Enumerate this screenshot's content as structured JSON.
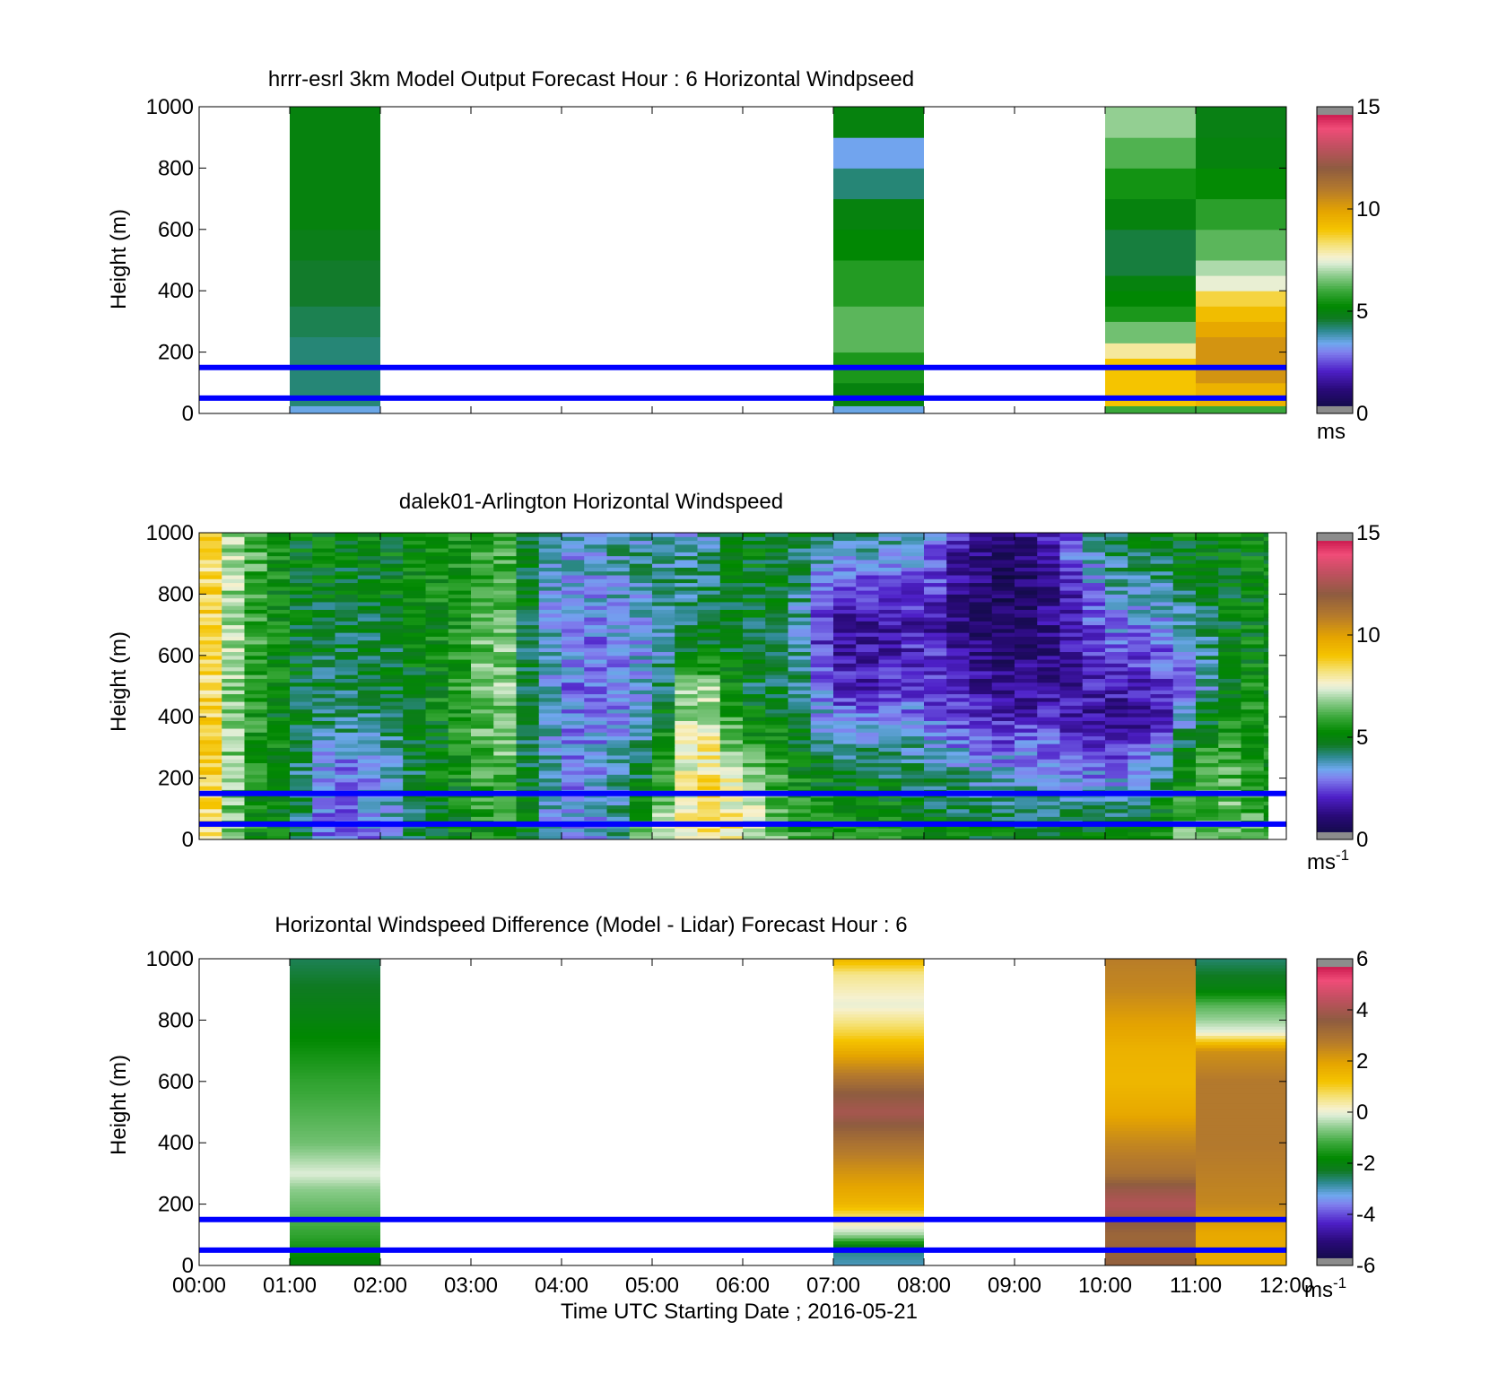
{
  "figure": {
    "xlabel": "Time UTC  Starting Date ; 2016-05-21",
    "time_ticks": [
      "00:00",
      "01:00",
      "02:00",
      "03:00",
      "04:00",
      "05:00",
      "06:00",
      "07:00",
      "08:00",
      "09:00",
      "10:00",
      "11:00",
      "12:00"
    ],
    "reference_lines_m": [
      50,
      150
    ],
    "reference_line_color": "#0000ff"
  },
  "chart_data": [
    {
      "type": "heatmap",
      "title": "hrrr-esrl 3km Model Output   Forecast Hour : 6 Horizontal Windpseed",
      "ylabel": "Height (m)",
      "ylim": [
        0,
        1000
      ],
      "yticks": [
        "0",
        "200",
        "400",
        "600",
        "800",
        "1000"
      ],
      "xlim_hours": [
        0,
        12
      ],
      "colorbar": {
        "ticks": [
          "0",
          "5",
          "10",
          "15"
        ],
        "range": [
          0,
          15
        ],
        "unit": "ms",
        "unit_sup": ""
      },
      "columns": [
        {
          "x_start_h": 1,
          "x_end_h": 2,
          "bins": [
            {
              "z0": 0,
              "z1": 25,
              "value": 3.5
            },
            {
              "z0": 25,
              "z1": 150,
              "value": 4.2
            },
            {
              "z0": 150,
              "z1": 250,
              "value": 4.2
            },
            {
              "z0": 250,
              "z1": 350,
              "value": 4.4
            },
            {
              "z0": 350,
              "z1": 500,
              "value": 4.6
            },
            {
              "z0": 500,
              "z1": 600,
              "value": 4.8
            },
            {
              "z0": 600,
              "z1": 1000,
              "value": 5.0
            }
          ]
        },
        {
          "x_start_h": 7,
          "x_end_h": 8,
          "bins": [
            {
              "z0": 0,
              "z1": 25,
              "value": 3.5
            },
            {
              "z0": 25,
              "z1": 100,
              "value": 5.0
            },
            {
              "z0": 100,
              "z1": 200,
              "value": 5.6
            },
            {
              "z0": 200,
              "z1": 350,
              "value": 6.3
            },
            {
              "z0": 350,
              "z1": 500,
              "value": 5.7
            },
            {
              "z0": 500,
              "z1": 600,
              "value": 5.2
            },
            {
              "z0": 600,
              "z1": 700,
              "value": 5.0
            },
            {
              "z0": 700,
              "z1": 800,
              "value": 4.2
            },
            {
              "z0": 800,
              "z1": 900,
              "value": 3.4
            },
            {
              "z0": 900,
              "z1": 1000,
              "value": 5.0
            }
          ]
        },
        {
          "x_start_h": 10,
          "x_end_h": 11,
          "bins": [
            {
              "z0": 0,
              "z1": 25,
              "value": 6.0
            },
            {
              "z0": 25,
              "z1": 180,
              "value": 9.0
            },
            {
              "z0": 180,
              "z1": 230,
              "value": 8.0
            },
            {
              "z0": 230,
              "z1": 300,
              "value": 6.5
            },
            {
              "z0": 300,
              "z1": 350,
              "value": 5.6
            },
            {
              "z0": 350,
              "z1": 400,
              "value": 5.2
            },
            {
              "z0": 400,
              "z1": 450,
              "value": 5.0
            },
            {
              "z0": 450,
              "z1": 600,
              "value": 4.5
            },
            {
              "z0": 600,
              "z1": 700,
              "value": 5.0
            },
            {
              "z0": 700,
              "z1": 800,
              "value": 5.5
            },
            {
              "z0": 800,
              "z1": 900,
              "value": 6.2
            },
            {
              "z0": 900,
              "z1": 1000,
              "value": 6.8
            }
          ]
        },
        {
          "x_start_h": 11,
          "x_end_h": 12,
          "bins": [
            {
              "z0": 0,
              "z1": 25,
              "value": 6.0
            },
            {
              "z0": 25,
              "z1": 100,
              "value": 9.5
            },
            {
              "z0": 100,
              "z1": 250,
              "value": 10.3
            },
            {
              "z0": 250,
              "z1": 300,
              "value": 9.8
            },
            {
              "z0": 300,
              "z1": 350,
              "value": 9.2
            },
            {
              "z0": 350,
              "z1": 400,
              "value": 8.6
            },
            {
              "z0": 400,
              "z1": 450,
              "value": 7.5
            },
            {
              "z0": 450,
              "z1": 500,
              "value": 7.0
            },
            {
              "z0": 500,
              "z1": 600,
              "value": 6.3
            },
            {
              "z0": 600,
              "z1": 700,
              "value": 5.8
            },
            {
              "z0": 700,
              "z1": 800,
              "value": 5.3
            },
            {
              "z0": 800,
              "z1": 900,
              "value": 5.0
            },
            {
              "z0": 900,
              "z1": 1000,
              "value": 4.9
            }
          ]
        }
      ]
    },
    {
      "type": "heatmap",
      "title": "dalek01-Arlington  Horizontal Windspeed",
      "ylabel": "Height (m)",
      "ylim": [
        0,
        1000
      ],
      "yticks": [
        "0",
        "200",
        "400",
        "600",
        "800",
        "1000"
      ],
      "xlim_hours": [
        0,
        12
      ],
      "colorbar": {
        "ticks": [
          "0",
          "5",
          "10",
          "15"
        ],
        "range": [
          0,
          15
        ],
        "unit": "ms",
        "unit_sup": "-1"
      },
      "data_extent_hours": [
        0,
        11.8
      ],
      "column_width_hours": 0.25,
      "profiles_hours": [
        {
          "t": 0.0,
          "z": [
            0,
            500,
            1000
          ],
          "v": [
            9.5,
            9.5,
            9.5
          ]
        },
        {
          "t": 0.25,
          "z": [
            0,
            500,
            1000
          ],
          "v": [
            7.5,
            7.5,
            7.5
          ]
        },
        {
          "t": 0.5,
          "z": [
            0,
            500,
            1000
          ],
          "v": [
            5.5,
            6.0,
            6.5
          ]
        },
        {
          "t": 1.0,
          "z": [
            0,
            500,
            1000
          ],
          "v": [
            5.0,
            4.8,
            5.0
          ]
        },
        {
          "t": 1.5,
          "z": [
            0,
            200,
            400,
            1000
          ],
          "v": [
            2.2,
            2.5,
            4.2,
            5.0
          ]
        },
        {
          "t": 2.0,
          "z": [
            0,
            200,
            400,
            1000
          ],
          "v": [
            3.2,
            3.5,
            4.3,
            5.0
          ]
        },
        {
          "t": 2.5,
          "z": [
            0,
            500,
            1000
          ],
          "v": [
            4.8,
            5.0,
            5.2
          ]
        },
        {
          "t": 3.0,
          "z": [
            0,
            500,
            1000
          ],
          "v": [
            5.0,
            6.0,
            5.5
          ]
        },
        {
          "t": 3.3,
          "z": [
            0,
            300,
            500,
            1000
          ],
          "v": [
            6.0,
            7.0,
            7.5,
            6.0
          ]
        },
        {
          "t": 3.6,
          "z": [
            0,
            500,
            1000
          ],
          "v": [
            5.0,
            4.5,
            5.0
          ]
        },
        {
          "t": 4.0,
          "z": [
            0,
            500,
            1000
          ],
          "v": [
            3.2,
            3.0,
            3.3
          ]
        },
        {
          "t": 4.5,
          "z": [
            0,
            300,
            600,
            1000
          ],
          "v": [
            3.5,
            3.2,
            2.8,
            4.0
          ]
        },
        {
          "t": 5.0,
          "z": [
            0,
            200,
            500,
            1000
          ],
          "v": [
            7.0,
            5.0,
            3.5,
            4.0
          ]
        },
        {
          "t": 5.5,
          "z": [
            0,
            150,
            300,
            500,
            600,
            1000
          ],
          "v": [
            8.5,
            8.5,
            8.5,
            7.5,
            5.0,
            3.5
          ]
        },
        {
          "t": 6.0,
          "z": [
            0,
            200,
            350,
            500,
            1000
          ],
          "v": [
            8.0,
            7.5,
            5.5,
            4.5,
            5.0
          ]
        },
        {
          "t": 6.5,
          "z": [
            0,
            300,
            700,
            1000
          ],
          "v": [
            6.0,
            5.0,
            4.5,
            4.8
          ]
        },
        {
          "t": 7.0,
          "z": [
            0,
            200,
            450,
            600,
            800,
            1000
          ],
          "v": [
            5.5,
            5.0,
            2.5,
            1.5,
            2.0,
            4.5
          ]
        },
        {
          "t": 7.5,
          "z": [
            0,
            300,
            500,
            700,
            1000
          ],
          "v": [
            6.0,
            4.0,
            2.0,
            1.5,
            4.0
          ]
        },
        {
          "t": 8.0,
          "z": [
            0,
            250,
            400,
            700,
            1000
          ],
          "v": [
            5.0,
            4.2,
            3.0,
            2.0,
            3.5
          ]
        },
        {
          "t": 8.5,
          "z": [
            0,
            200,
            400,
            700,
            1000
          ],
          "v": [
            5.0,
            4.0,
            2.0,
            1.0,
            1.5
          ]
        },
        {
          "t": 9.0,
          "z": [
            0,
            200,
            500,
            800,
            1000
          ],
          "v": [
            5.0,
            3.5,
            1.2,
            0.6,
            1.2
          ]
        },
        {
          "t": 9.5,
          "z": [
            0,
            250,
            500,
            800,
            1000
          ],
          "v": [
            5.0,
            3.0,
            1.5,
            1.5,
            2.5
          ]
        },
        {
          "t": 10.0,
          "z": [
            0,
            200,
            400,
            600,
            1000
          ],
          "v": [
            5.2,
            3.0,
            1.5,
            2.5,
            4.5
          ]
        },
        {
          "t": 10.5,
          "z": [
            0,
            250,
            400,
            600,
            1000
          ],
          "v": [
            6.0,
            3.0,
            1.2,
            2.5,
            5.0
          ]
        },
        {
          "t": 11.0,
          "z": [
            0,
            300,
            500,
            700,
            1000
          ],
          "v": [
            6.5,
            5.5,
            3.0,
            4.0,
            5.2
          ]
        },
        {
          "t": 11.5,
          "z": [
            0,
            400,
            700,
            1000
          ],
          "v": [
            6.5,
            6.0,
            5.0,
            5.0
          ]
        },
        {
          "t": 11.8,
          "z": [
            0,
            500,
            1000
          ],
          "v": [
            5.5,
            5.2,
            5.0
          ]
        }
      ]
    },
    {
      "type": "heatmap",
      "title": "Horizontal Windspeed Difference (Model - Lidar) Forecast Hour : 6",
      "ylabel": "Height (m)",
      "ylim": [
        0,
        1000
      ],
      "yticks": [
        "0",
        "200",
        "400",
        "600",
        "800",
        "1000"
      ],
      "xlim_hours": [
        0,
        12
      ],
      "colorbar": {
        "ticks": [
          "-6",
          "-4",
          "-2",
          "0",
          "2",
          "4",
          "6"
        ],
        "range": [
          -6,
          6
        ],
        "unit": "ms",
        "unit_sup": "-1"
      },
      "columns": [
        {
          "x_start_h": 1,
          "x_end_h": 2,
          "profile": {
            "z": [
              0,
              100,
              250,
              300,
              400,
              600,
              800,
              1000
            ],
            "v": [
              -2.0,
              -1.3,
              -0.6,
              -0.1,
              -0.8,
              -1.3,
              -2.0,
              -2.5
            ]
          }
        },
        {
          "x_start_h": 7,
          "x_end_h": 8,
          "profile": {
            "z": [
              0,
              50,
              100,
              200,
              300,
              400,
              500,
              560,
              650,
              750,
              850,
              950,
              1000
            ],
            "v": [
              -3.0,
              -2.7,
              -0.5,
              1.5,
              2.2,
              3.0,
              4.0,
              3.6,
              2.4,
              1.0,
              0.0,
              0.5,
              1.5
            ]
          }
        },
        {
          "x_start_h": 10,
          "x_end_h": 11,
          "profile": {
            "z": [
              0,
              100,
              200,
              250,
              300,
              400,
              500,
              600,
              700,
              800,
              900,
              1000
            ],
            "v": [
              3.5,
              3.3,
              4.2,
              3.8,
              3.0,
              2.5,
              1.8,
              1.5,
              1.6,
              2.0,
              2.5,
              2.7
            ]
          }
        },
        {
          "x_start_h": 11,
          "x_end_h": 12,
          "profile": {
            "z": [
              0,
              100,
              200,
              400,
              600,
              700,
              730,
              760,
              800,
              850,
              900,
              1000
            ],
            "v": [
              1.8,
              1.8,
              2.5,
              2.8,
              2.8,
              2.3,
              1.2,
              0.0,
              -0.5,
              -1.0,
              -2.0,
              -2.6
            ]
          }
        }
      ]
    }
  ]
}
